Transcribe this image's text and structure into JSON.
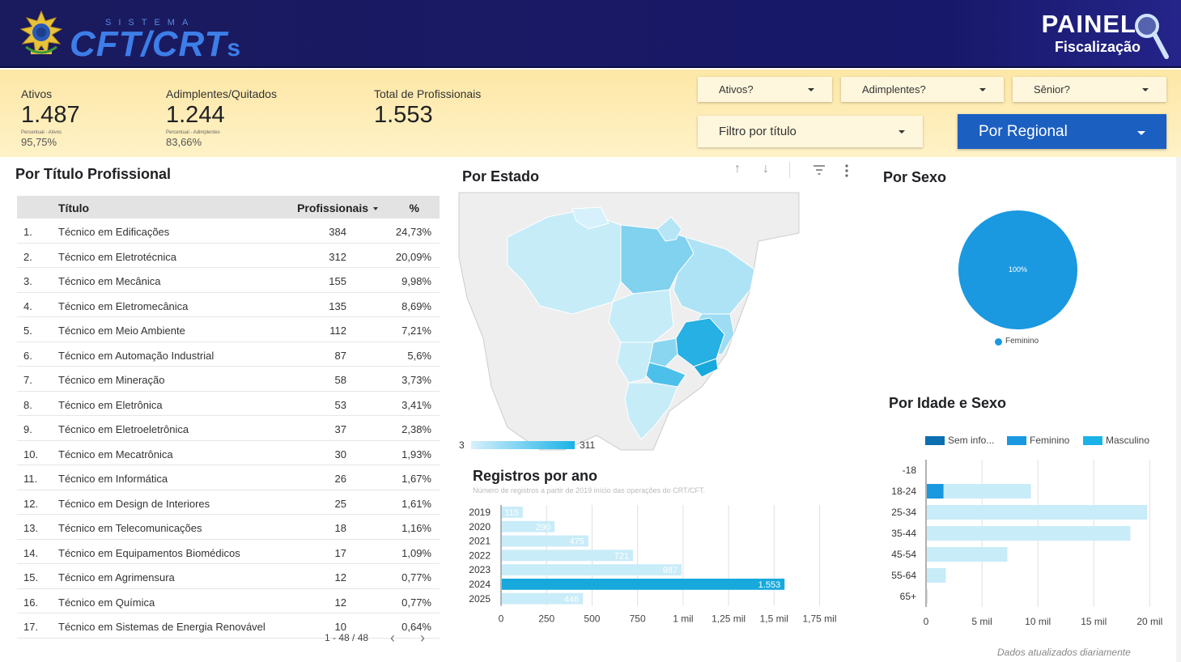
{
  "header": {
    "sistema": "SISTEMA",
    "logo_main": "CFT/CRT",
    "logo_suffix": "s",
    "painel_title": "PAINEL",
    "painel_sub": "Fiscalização"
  },
  "kpis": [
    {
      "label": "Ativos",
      "value": "1.487",
      "sublabel": "Percentual - Ativos",
      "subvalue": "95,75%"
    },
    {
      "label": "Adimplentes/Quitados",
      "value": "1.244",
      "sublabel": "Percentual - Adimplentes",
      "subvalue": "83,66%"
    },
    {
      "label": "Total de Profissionais",
      "value": "1.553"
    }
  ],
  "filters": {
    "ativos": "Ativos?",
    "adimplentes": "Adimplentes?",
    "senior": "Sênior?",
    "titulo": "Filtro por título",
    "regional": "Por Regional"
  },
  "colors": {
    "header_bg": "#1a1a5e",
    "kpi_bg": "#fde7a6",
    "regional_btn": "#1b5fc1",
    "bar_light": "#c8ecf8",
    "bar_highlight": "#17a9dc",
    "feminino": "#1a98e0",
    "masculino": "#1ab3e8",
    "sem_info": "#0b6fb0"
  },
  "table": {
    "title": "Por Título Profissional",
    "headers": {
      "titulo": "Título",
      "profissionais": "Profissionais",
      "pct": "%"
    },
    "rows": [
      {
        "idx": "1.",
        "titulo": "Técnico em Edificações",
        "num": "384",
        "pct": "24,73%"
      },
      {
        "idx": "2.",
        "titulo": "Técnico em Eletrotécnica",
        "num": "312",
        "pct": "20,09%"
      },
      {
        "idx": "3.",
        "titulo": "Técnico em Mecânica",
        "num": "155",
        "pct": "9,98%"
      },
      {
        "idx": "4.",
        "titulo": "Técnico em Eletromecânica",
        "num": "135",
        "pct": "8,69%"
      },
      {
        "idx": "5.",
        "titulo": "Técnico em Meio Ambiente",
        "num": "112",
        "pct": "7,21%"
      },
      {
        "idx": "6.",
        "titulo": "Técnico em Automação Industrial",
        "num": "87",
        "pct": "5,6%"
      },
      {
        "idx": "7.",
        "titulo": "Técnico em Mineração",
        "num": "58",
        "pct": "3,73%"
      },
      {
        "idx": "8.",
        "titulo": "Técnico em Eletrônica",
        "num": "53",
        "pct": "3,41%"
      },
      {
        "idx": "9.",
        "titulo": "Técnico em Eletroeletrônica",
        "num": "37",
        "pct": "2,38%"
      },
      {
        "idx": "10.",
        "titulo": "Técnico em Mecatrônica",
        "num": "30",
        "pct": "1,93%"
      },
      {
        "idx": "11.",
        "titulo": "Técnico em Informática",
        "num": "26",
        "pct": "1,67%"
      },
      {
        "idx": "12.",
        "titulo": "Técnico em Design de Interiores",
        "num": "25",
        "pct": "1,61%"
      },
      {
        "idx": "13.",
        "titulo": "Técnico em Telecomunicações",
        "num": "18",
        "pct": "1,16%"
      },
      {
        "idx": "14.",
        "titulo": "Técnico em Equipamentos Biomédicos",
        "num": "17",
        "pct": "1,09%"
      },
      {
        "idx": "15.",
        "titulo": "Técnico em Agrimensura",
        "num": "12",
        "pct": "0,77%"
      },
      {
        "idx": "16.",
        "titulo": "Técnico em Química",
        "num": "12",
        "pct": "0,77%"
      },
      {
        "idx": "17.",
        "titulo": "Técnico em Sistemas de Energia Renovável",
        "num": "10",
        "pct": "0,64%"
      }
    ],
    "pager": "1 - 48 / 48"
  },
  "map": {
    "title": "Por Estado",
    "legend_min": "3",
    "legend_max": "311"
  },
  "sexo": {
    "title": "Por Sexo",
    "slice_label": "100%",
    "legend": "Feminino"
  },
  "idade": {
    "title": "Por Idade e Sexo",
    "legend": [
      "Sem info...",
      "Feminino",
      "Masculino"
    ]
  },
  "registros": {
    "title": "Registros por ano",
    "subtitle": "Número de registros a partir de 2019 início das operações do CRT/CFT."
  },
  "footer_note": "Dados atualizados diariamente",
  "chart_data": [
    {
      "type": "bar",
      "orientation": "horizontal",
      "title": "Registros por ano",
      "categories": [
        "2019",
        "2020",
        "2021",
        "2022",
        "2023",
        "2024",
        "2025"
      ],
      "values": [
        115,
        290,
        475,
        721,
        987,
        1553,
        446
      ],
      "value_labels": [
        "115",
        "290",
        "475",
        "721",
        "987",
        "1.553",
        "446"
      ],
      "xlim": [
        0,
        1850
      ],
      "xticks": [
        0,
        250,
        500,
        750,
        1000,
        1250,
        1500,
        1750
      ],
      "xtick_labels": [
        "0",
        "250",
        "500",
        "750",
        "1 mil",
        "1,25 mil",
        "1,5 mil",
        "1,75 mil"
      ],
      "grid": true
    },
    {
      "type": "bar",
      "orientation": "horizontal",
      "title": "Por Idade e Sexo",
      "categories": [
        "-18",
        "18-24",
        "25-34",
        "35-44",
        "45-54",
        "55-64",
        "65+"
      ],
      "series": [
        {
          "name": "Sem info...",
          "values": [
            0,
            0,
            0,
            0,
            0,
            0,
            0
          ]
        },
        {
          "name": "Feminino",
          "values": [
            0,
            1500,
            0,
            0,
            0,
            0,
            0
          ]
        },
        {
          "name": "Masculino",
          "values": [
            0,
            7800,
            19700,
            18200,
            7200,
            1700,
            100
          ]
        }
      ],
      "xlim": [
        0,
        20700
      ],
      "xticks": [
        0,
        5000,
        10000,
        15000,
        20000
      ],
      "xtick_labels": [
        "0",
        "5 mil",
        "10 mil",
        "15 mil",
        "20 mil"
      ],
      "grid": true
    },
    {
      "type": "pie",
      "title": "Por Sexo",
      "categories": [
        "Feminino"
      ],
      "values": [
        100
      ]
    }
  ]
}
